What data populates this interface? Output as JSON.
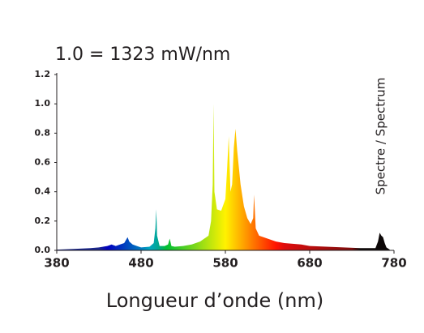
{
  "chart_data": {
    "type": "area",
    "title": "1.0 = 1323 mW/nm",
    "x_label": "Longueur d’onde (nm)",
    "side_label": "Spectre / Spectrum",
    "x": [
      380,
      400,
      420,
      430,
      440,
      445,
      450,
      455,
      460,
      464,
      466,
      468,
      470,
      475,
      480,
      490,
      495,
      497,
      498,
      499,
      502,
      508,
      512,
      514,
      516,
      520,
      530,
      540,
      550,
      555,
      560,
      563,
      565,
      566,
      567,
      570,
      575,
      580,
      582,
      584,
      586,
      588,
      590,
      592,
      594,
      598,
      602,
      606,
      610,
      613,
      614,
      616,
      620,
      630,
      640,
      650,
      660,
      670,
      680,
      700,
      720,
      740,
      758,
      761,
      763,
      765,
      767,
      769,
      771,
      775
    ],
    "values": [
      0.005,
      0.01,
      0.015,
      0.02,
      0.03,
      0.04,
      0.03,
      0.04,
      0.05,
      0.09,
      0.06,
      0.05,
      0.04,
      0.03,
      0.02,
      0.025,
      0.05,
      0.15,
      0.28,
      0.1,
      0.03,
      0.03,
      0.04,
      0.08,
      0.03,
      0.025,
      0.03,
      0.04,
      0.06,
      0.08,
      0.1,
      0.2,
      0.45,
      1.0,
      0.4,
      0.28,
      0.27,
      0.35,
      0.55,
      0.78,
      0.4,
      0.45,
      0.7,
      0.83,
      0.68,
      0.45,
      0.3,
      0.22,
      0.18,
      0.22,
      0.38,
      0.15,
      0.1,
      0.08,
      0.06,
      0.05,
      0.045,
      0.04,
      0.03,
      0.025,
      0.02,
      0.015,
      0.015,
      0.06,
      0.12,
      0.1,
      0.09,
      0.05,
      0.02,
      0.005
    ],
    "xlim": [
      380,
      780
    ],
    "ylim": [
      0,
      1.2
    ],
    "xticks": [
      380,
      480,
      580,
      680,
      780
    ],
    "yticks": [
      {
        "value": 0,
        "label": "0.0"
      },
      0.2,
      0.4,
      0.6,
      0.8,
      {
        "value": 1,
        "label": "1.0"
      },
      1.2
    ]
  }
}
